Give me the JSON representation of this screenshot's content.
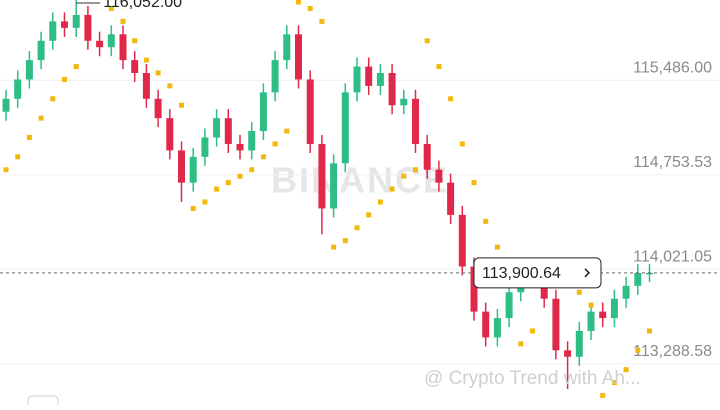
{
  "chart_data": {
    "type": "candlestick",
    "up_color": "#2ebd85",
    "down_color": "#e0294a",
    "open": [
      115150,
      115250,
      115400,
      115550,
      115700,
      115850,
      115800,
      115900,
      115700,
      115650,
      115750,
      115550,
      115450,
      115250,
      115100,
      114850,
      114600,
      114800,
      114950,
      115100,
      114900,
      114850,
      115000,
      115300,
      115550,
      115750,
      115400,
      114900,
      114400,
      114750,
      115300,
      115500,
      115350,
      115450,
      115200,
      115250,
      114900,
      114700,
      114600,
      114350,
      113950,
      113600,
      113400,
      113550,
      113750,
      113900,
      113950,
      113700,
      113300,
      113250,
      113450,
      113600,
      113550,
      113700,
      113800,
      113900
    ],
    "high": [
      115320,
      115470,
      115620,
      115770,
      115920,
      115920,
      116052,
      115970,
      115770,
      115820,
      115820,
      115620,
      115520,
      115320,
      115170,
      114920,
      114870,
      115020,
      115170,
      115170,
      114970,
      115070,
      115370,
      115620,
      115820,
      115820,
      115470,
      114970,
      114820,
      115370,
      115570,
      115570,
      115520,
      115520,
      115320,
      115320,
      114970,
      114770,
      114670,
      114420,
      114020,
      113670,
      113620,
      113820,
      113970,
      114020,
      114020,
      113770,
      113370,
      113520,
      113670,
      113670,
      113770,
      113870,
      113970,
      113970
    ],
    "low": [
      115080,
      115180,
      115330,
      115480,
      115630,
      115730,
      115730,
      115630,
      115580,
      115580,
      115480,
      115380,
      115180,
      115030,
      114780,
      114450,
      114530,
      114730,
      114880,
      114830,
      114780,
      114780,
      114930,
      115230,
      115480,
      115330,
      114830,
      114200,
      114330,
      114680,
      115230,
      115280,
      115280,
      115130,
      115130,
      114830,
      114630,
      114530,
      114280,
      113880,
      113530,
      113330,
      113330,
      113480,
      113680,
      113830,
      113630,
      113230,
      113000,
      113180,
      113380,
      113480,
      113480,
      113630,
      113730,
      113830
    ],
    "close": [
      115250,
      115400,
      115550,
      115700,
      115850,
      115800,
      115900,
      115700,
      115650,
      115750,
      115550,
      115450,
      115250,
      115100,
      114850,
      114600,
      114800,
      114950,
      115100,
      114900,
      114850,
      115000,
      115300,
      115550,
      115750,
      115400,
      114900,
      114400,
      114750,
      115300,
      115500,
      115350,
      115450,
      115200,
      115250,
      114900,
      114700,
      114600,
      114350,
      113950,
      113600,
      113400,
      113550,
      113750,
      113900,
      113950,
      113700,
      113300,
      113250,
      113450,
      113600,
      113550,
      113700,
      113800,
      113900,
      113900.64
    ],
    "sar": {
      "color": "#f0b90b",
      "values": [
        114700,
        114800,
        114950,
        115100,
        115250,
        115400,
        115500,
        116100,
        116050,
        115950,
        115850,
        115700,
        115550,
        115450,
        115350,
        115200,
        114400,
        114450,
        114550,
        114600,
        114650,
        114700,
        114800,
        114900,
        115000,
        116000,
        115950,
        115850,
        114100,
        114150,
        114250,
        114350,
        114450,
        114550,
        114650,
        114700,
        115700,
        115500,
        115250,
        114900,
        114600,
        114300,
        114100,
        113950,
        113350,
        113450,
        114000,
        113950,
        113850,
        113750,
        113650,
        112950,
        113050,
        113150,
        113300,
        113450
      ]
    },
    "ylim": [
      112876,
      116016
    ],
    "yticks": [
      {
        "value": 113288.58,
        "label": "113,288.58"
      },
      {
        "value": 114021.05,
        "label": "114,021.05"
      },
      {
        "value": 114753.53,
        "label": "114,753.53"
      },
      {
        "value": 115486,
        "label": "115,486.00"
      }
    ],
    "grid": true,
    "high_marker": {
      "value": 116052,
      "label": "116,052.00"
    },
    "last_price": {
      "value": 113900.64,
      "label": "113,900.64"
    },
    "watermark": "BINANCE",
    "credit": "@ Crypto Trend with Ah..."
  }
}
